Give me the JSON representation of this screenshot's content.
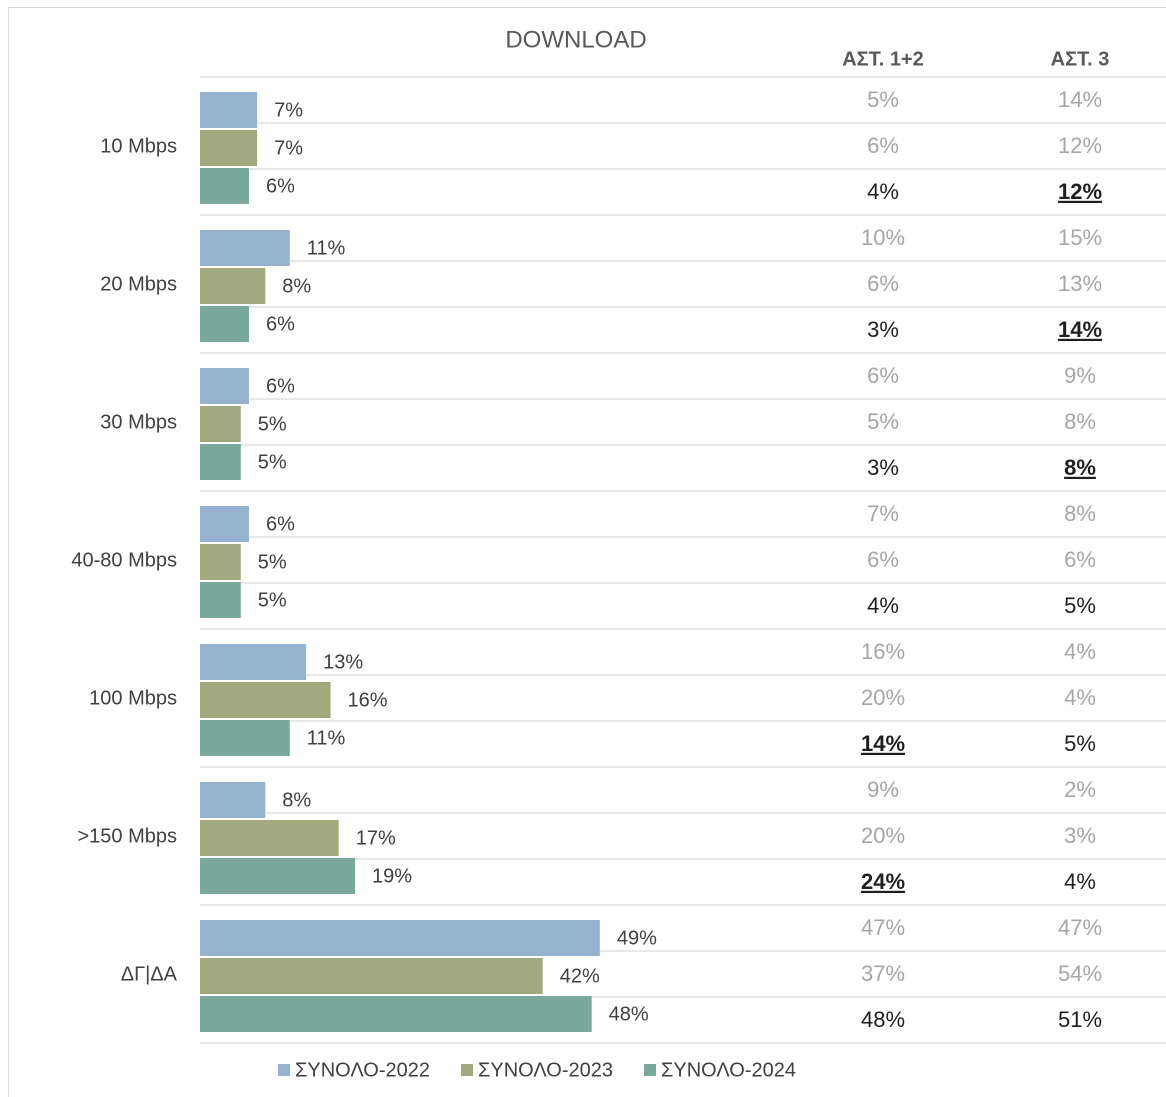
{
  "chart_data": {
    "type": "bar",
    "orientation": "horizontal",
    "title": "DOWNLOAD",
    "categories": [
      "10 Mbps",
      "20 Mbps",
      "30 Mbps",
      "40-80 Mbps",
      "100 Mbps",
      ">150 Mbps",
      "ΔΓ|ΔΑ"
    ],
    "series": [
      {
        "name": "ΣΥΝΟΛΟ-2022",
        "color": "#95b3d0",
        "values": [
          7,
          11,
          6,
          6,
          13,
          8,
          49
        ],
        "value_labels": [
          "7%",
          "11%",
          "6%",
          "6%",
          "13%",
          "8%",
          "49%"
        ]
      },
      {
        "name": "ΣΥΝΟΛΟ-2023",
        "color": "#a3a97e",
        "values": [
          7,
          8,
          5,
          5,
          16,
          17,
          42
        ],
        "value_labels": [
          "7%",
          "8%",
          "5%",
          "5%",
          "16%",
          "17%",
          "42%"
        ]
      },
      {
        "name": "ΣΥΝΟΛΟ-2024",
        "color": "#7aa89c",
        "values": [
          6,
          6,
          5,
          5,
          11,
          19,
          48
        ],
        "value_labels": [
          "6%",
          "6%",
          "5%",
          "5%",
          "11%",
          "19%",
          "48%"
        ]
      }
    ],
    "table": {
      "columns": [
        "ΑΣΤ. 1+2",
        "ΑΣΤ. 3"
      ],
      "rows": [
        [
          [
            "5%",
            "14%"
          ],
          [
            "6%",
            "12%"
          ],
          [
            "4%",
            {
              "text": "12%",
              "underline": true
            }
          ]
        ],
        [
          [
            "10%",
            "15%"
          ],
          [
            "6%",
            "13%"
          ],
          [
            "3%",
            {
              "text": "14%",
              "underline": true
            }
          ]
        ],
        [
          [
            "6%",
            "9%"
          ],
          [
            "5%",
            "8%"
          ],
          [
            "3%",
            {
              "text": "8%",
              "underline": true
            }
          ]
        ],
        [
          [
            "7%",
            "8%"
          ],
          [
            "6%",
            "6%"
          ],
          [
            "4%",
            "5%"
          ]
        ],
        [
          [
            "16%",
            "4%"
          ],
          [
            "20%",
            "4%"
          ],
          [
            {
              "text": "14%",
              "underline": true
            },
            "5%"
          ]
        ],
        [
          [
            "9%",
            "2%"
          ],
          [
            "20%",
            "3%"
          ],
          [
            {
              "text": "24%",
              "underline": true
            },
            "4%"
          ]
        ],
        [
          [
            "47%",
            "47%"
          ],
          [
            "37%",
            "54%"
          ],
          [
            "48%",
            "51%"
          ]
        ]
      ]
    },
    "legend": "bottom"
  }
}
